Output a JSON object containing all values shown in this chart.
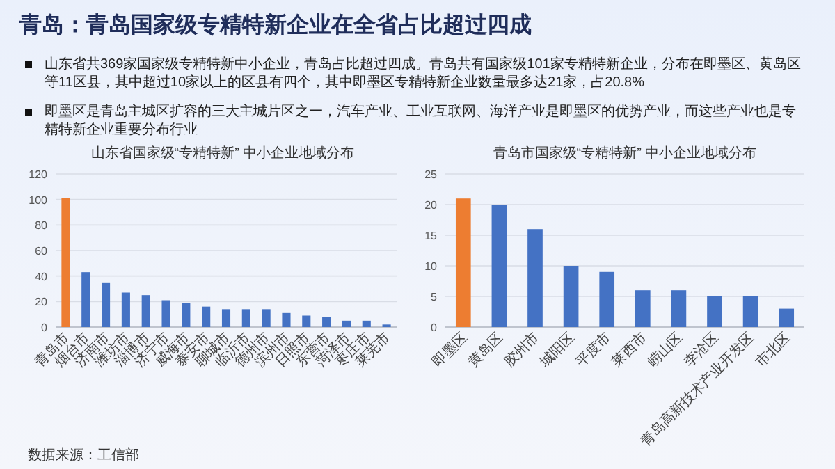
{
  "chart_data": [
    {
      "type": "other",
      "title": "青岛：青岛国家级专精特新企业在全省占比超过四成",
      "annotations": [
        "山东省共369家国家级专精特新中小企业，青岛占比超过四成。青岛共有国家级101家专精特新企业，分布在即墨区、黄岛区等11区县，其中超过10家以上的区县有四个，其中即墨区专精特新企业数量最多达21家，占20.8%",
        "即墨区是青岛主城区扩容的三大主城片区之一，汽车产业、工业互联网、海洋产业是即墨区的优势产业，而这些产业也是专精特新企业重要分布行业",
        "数据来源：工信部"
      ]
    },
    {
      "type": "bar",
      "title": "山东省国家级“专精特新” 中小企业地域分布",
      "categories": [
        "青岛市",
        "烟台市",
        "济南市",
        "潍坊市",
        "淄博市",
        "济宁市",
        "威海市",
        "泰安市",
        "聊城市",
        "临沂市",
        "德州市",
        "滨州市",
        "日照市",
        "东营市",
        "菏泽市",
        "枣庄市",
        "莱芜市"
      ],
      "values": [
        101,
        43,
        35,
        27,
        25,
        21,
        19,
        16,
        14,
        14,
        14,
        11,
        9,
        8,
        5,
        5,
        2
      ],
      "colors": [
        "#ed7d31",
        "#4472c4",
        "#4472c4",
        "#4472c4",
        "#4472c4",
        "#4472c4",
        "#4472c4",
        "#4472c4",
        "#4472c4",
        "#4472c4",
        "#4472c4",
        "#4472c4",
        "#4472c4",
        "#4472c4",
        "#4472c4",
        "#4472c4",
        "#4472c4"
      ],
      "ylim": [
        0,
        120
      ],
      "yticks": [
        0,
        20,
        40,
        60,
        80,
        100,
        120
      ],
      "grid": "y"
    },
    {
      "type": "bar",
      "title": "青岛市国家级“专精特新” 中小企业地域分布",
      "categories": [
        "即墨区",
        "黄岛区",
        "胶州市",
        "城阳区",
        "平度市",
        "莱西市",
        "崂山区",
        "李沧区",
        "青岛高新技术产业开发区",
        "市北区"
      ],
      "values": [
        21,
        20,
        16,
        10,
        9,
        6,
        6,
        5,
        5,
        3
      ],
      "colors": [
        "#ed7d31",
        "#4472c4",
        "#4472c4",
        "#4472c4",
        "#4472c4",
        "#4472c4",
        "#4472c4",
        "#4472c4",
        "#4472c4",
        "#4472c4"
      ],
      "ylim": [
        0,
        25
      ],
      "yticks": [
        0,
        5,
        10,
        15,
        20,
        25
      ],
      "grid": "y"
    }
  ]
}
